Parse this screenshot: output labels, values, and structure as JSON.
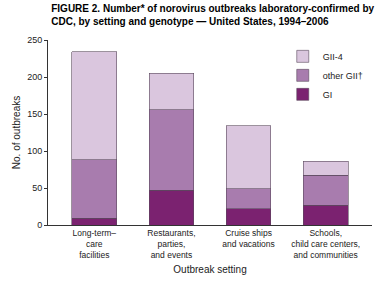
{
  "chart_data": {
    "type": "bar",
    "stacked": true,
    "title": "FIGURE 2. Number* of norovirus outbreaks laboratory-confirmed by\nCDC, by setting and genotype — United States, 1994–2006",
    "x_label": "Outbreak setting",
    "y_label": "No. of outbreaks",
    "categories": [
      "Long-term–\ncare\nfacilities",
      "Restaurants,\nparties,\nand events",
      "Cruise ships\nand vacations",
      "Schools,\nchild care centers,\nand communities"
    ],
    "series": [
      {
        "name": "GI",
        "color": "#7b2270",
        "values": [
          9,
          47,
          22,
          27
        ]
      },
      {
        "name": "other GII†",
        "color": "#a87cae",
        "values": [
          79,
          109,
          27,
          40
        ]
      },
      {
        "name": "GII-4",
        "color": "#dac6de",
        "values": [
          146,
          49,
          85,
          19
        ]
      }
    ],
    "ylim": [
      0,
      250
    ],
    "yticks": [
      0,
      50,
      100,
      150,
      200,
      250
    ],
    "grid": false,
    "legend": "top right"
  }
}
